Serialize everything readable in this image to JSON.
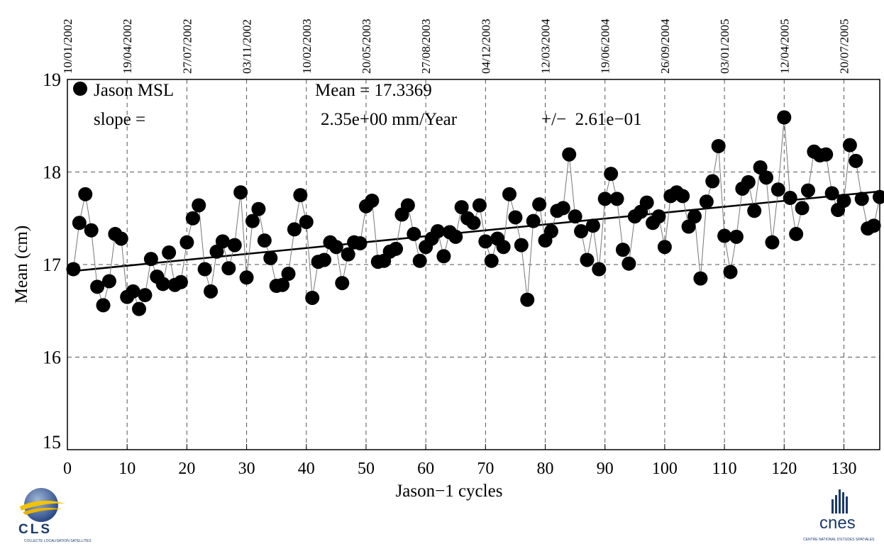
{
  "chart_data": {
    "type": "scatter",
    "xlabel": "Jason−1 cycles",
    "ylabel": "Mean (cm)",
    "xlim": [
      0,
      136
    ],
    "ylim": [
      15,
      19
    ],
    "x_ticks": [
      0,
      10,
      20,
      30,
      40,
      50,
      60,
      70,
      80,
      90,
      100,
      110,
      120,
      130
    ],
    "y_ticks": [
      15,
      16,
      17,
      18,
      19
    ],
    "top_axis_dates": [
      {
        "cycle": 0,
        "label": "10/01/2002"
      },
      {
        "cycle": 10,
        "label": "19/04/2002"
      },
      {
        "cycle": 20,
        "label": "27/07/2002"
      },
      {
        "cycle": 30,
        "label": "03/11/2002"
      },
      {
        "cycle": 40,
        "label": "10/02/2003"
      },
      {
        "cycle": 50,
        "label": "20/05/2003"
      },
      {
        "cycle": 60,
        "label": "27/08/2003"
      },
      {
        "cycle": 70,
        "label": "04/12/2003"
      },
      {
        "cycle": 80,
        "label": "12/03/2004"
      },
      {
        "cycle": 90,
        "label": "19/06/2004"
      },
      {
        "cycle": 100,
        "label": "26/09/2004"
      },
      {
        "cycle": 110,
        "label": "03/01/2005"
      },
      {
        "cycle": 120,
        "label": "12/04/2005"
      },
      {
        "cycle": 130,
        "label": "20/07/2005"
      }
    ],
    "grid": true,
    "legend": "top-left",
    "series": [
      {
        "name": "Jason MSL",
        "x": [
          1,
          2,
          3,
          4,
          5,
          6,
          7,
          8,
          9,
          10,
          11,
          12,
          13,
          14,
          15,
          16,
          17,
          18,
          19,
          20,
          21,
          22,
          23,
          24,
          25,
          26,
          27,
          28,
          29,
          30,
          31,
          32,
          33,
          34,
          35,
          36,
          37,
          38,
          39,
          40,
          41,
          42,
          43,
          44,
          45,
          46,
          47,
          48,
          49,
          50,
          51,
          52,
          53,
          54,
          55,
          56,
          57,
          58,
          59,
          60,
          61,
          62,
          63,
          64,
          65,
          66,
          67,
          68,
          69,
          70,
          71,
          72,
          73,
          74,
          75,
          76,
          77,
          78,
          79,
          80,
          81,
          82,
          83,
          84,
          85,
          86,
          87,
          88,
          89,
          90,
          91,
          92,
          93,
          94,
          95,
          96,
          97,
          98,
          99,
          100,
          101,
          102,
          103,
          104,
          105,
          106,
          107,
          108,
          109,
          110,
          111,
          112,
          113,
          114,
          115,
          116,
          117,
          118,
          119,
          120,
          121,
          122,
          123,
          124,
          125,
          126,
          127,
          128,
          129,
          130,
          131,
          132,
          133,
          134,
          135,
          136
        ],
        "y": [
          16.95,
          17.45,
          17.76,
          17.37,
          16.76,
          16.56,
          16.82,
          17.33,
          17.28,
          16.65,
          16.71,
          16.52,
          16.67,
          17.06,
          16.87,
          16.79,
          17.13,
          16.78,
          16.81,
          17.24,
          17.5,
          17.64,
          16.95,
          16.71,
          17.14,
          17.25,
          16.96,
          17.21,
          17.78,
          16.86,
          17.47,
          17.6,
          17.26,
          17.07,
          16.77,
          16.78,
          16.9,
          17.38,
          17.75,
          17.46,
          16.64,
          17.03,
          17.05,
          17.24,
          17.19,
          16.8,
          17.11,
          17.24,
          17.23,
          17.63,
          17.69,
          17.03,
          17.04,
          17.14,
          17.17,
          17.54,
          17.64,
          17.33,
          17.04,
          17.19,
          17.28,
          17.36,
          17.09,
          17.35,
          17.3,
          17.62,
          17.5,
          17.45,
          17.64,
          17.25,
          17.04,
          17.28,
          17.19,
          17.76,
          17.51,
          17.21,
          16.62,
          17.47,
          17.65,
          17.26,
          17.36,
          17.58,
          17.61,
          18.19,
          17.52,
          17.36,
          17.05,
          17.42,
          16.95,
          17.71,
          17.98,
          17.71,
          17.16,
          17.01,
          17.52,
          17.57,
          17.67,
          17.45,
          17.52,
          17.19,
          17.74,
          17.78,
          17.74,
          17.41,
          17.52,
          16.85,
          17.68,
          17.9,
          18.28,
          17.31,
          16.92,
          17.3,
          17.82,
          17.89,
          17.58,
          18.05,
          17.94,
          17.24,
          17.81,
          18.59,
          17.72,
          17.33,
          17.61,
          17.8,
          18.22,
          18.18,
          18.19,
          17.77,
          17.59,
          17.69,
          18.29,
          18.12,
          17.71,
          17.39,
          17.42,
          17.73
        ]
      }
    ],
    "trend": {
      "x": [
        1,
        136
      ],
      "y": [
        16.93,
        17.79
      ]
    },
    "annotations": {
      "legend_label": "Jason MSL",
      "mean_text": "Mean = 17.3369",
      "slope_label": "slope =",
      "slope_value": "2.35e+00 mm/Year",
      "slope_error": "+/−  2.61e−01"
    },
    "colors": {
      "points": "#000000",
      "grid": "#555555",
      "line": "#000000"
    }
  },
  "logos": {
    "cls_text": "CLS",
    "cls_subtext": "COLLECTE LOCALISATION SATELLITES",
    "cnes_text": "cnes",
    "cnes_subtext": "CENTRE NATIONAL D'ETUDES SPATIALES"
  }
}
